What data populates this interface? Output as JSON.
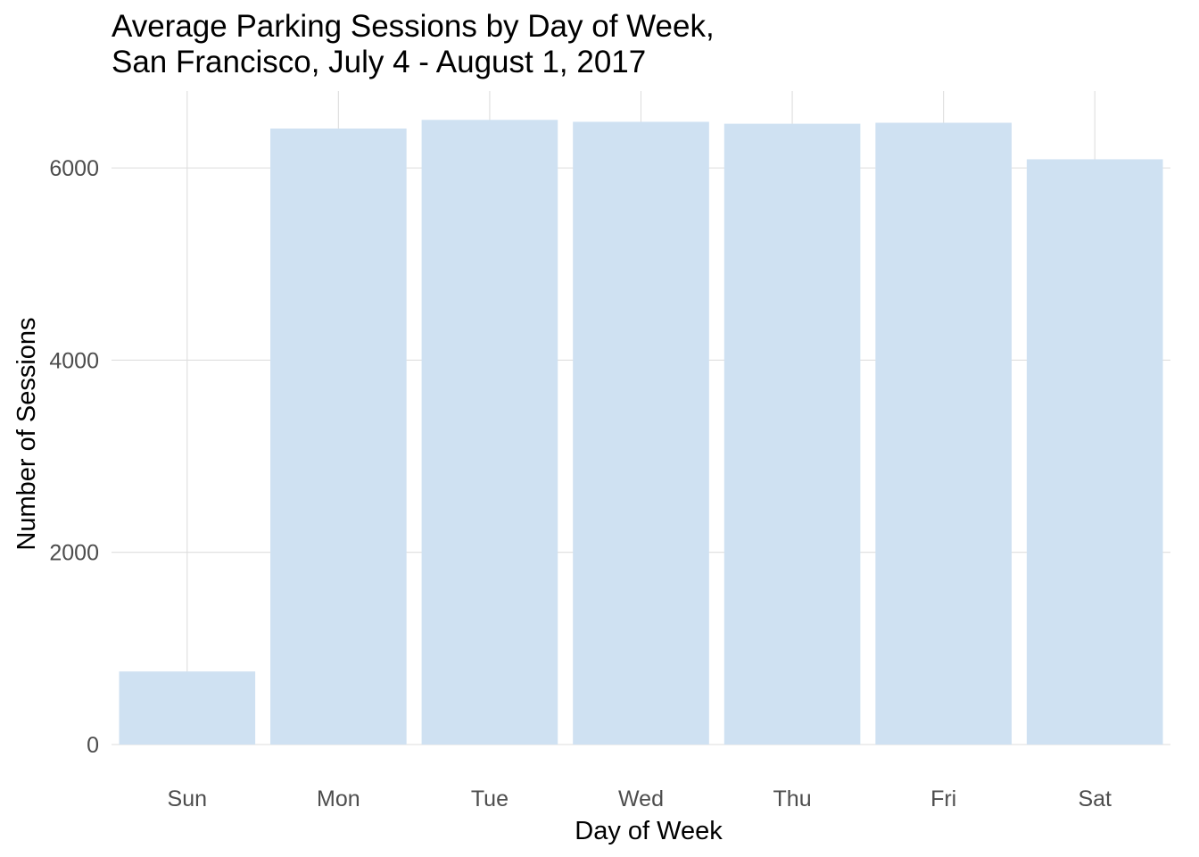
{
  "chart_data": {
    "type": "bar",
    "title_lines": [
      "Average Parking Sessions by Day of Week,",
      "San Francisco, July 4 - August 1, 2017"
    ],
    "xlabel": "Day of Week",
    "ylabel": "Number of Sessions",
    "categories": [
      "Sun",
      "Mon",
      "Tue",
      "Wed",
      "Thu",
      "Fri",
      "Sat"
    ],
    "values": [
      760,
      6410,
      6500,
      6480,
      6460,
      6470,
      6090
    ],
    "ylim": [
      0,
      6800
    ],
    "yticks": [
      0,
      2000,
      4000,
      6000
    ],
    "ytick_labels": [
      "0",
      "2000",
      "4000",
      "6000"
    ],
    "grid": true,
    "bar_color": "#cfe1f2",
    "grid_color": "#dedede"
  }
}
